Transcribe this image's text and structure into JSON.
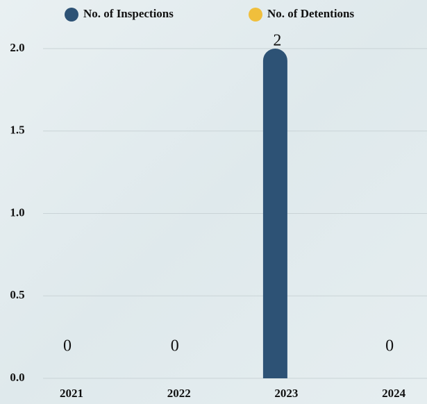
{
  "chart_data": {
    "type": "bar",
    "categories": [
      "2021",
      "2022",
      "2023",
      "2024"
    ],
    "series": [
      {
        "name": "No. of Inspections",
        "color": "#2d5275",
        "values": [
          0,
          0,
          2,
          0
        ]
      },
      {
        "name": "No. of Detentions",
        "color": "#f0bf3c",
        "values": [
          0,
          0,
          0,
          0
        ]
      }
    ],
    "ylim": [
      0,
      2
    ],
    "yticks": [
      {
        "value": 0,
        "label": "0.0"
      },
      0.5,
      {
        "value": 1,
        "label": "1.0"
      },
      {
        "value": 1.5,
        "label": "1.5"
      },
      {
        "value": 2,
        "label": "2.0"
      }
    ],
    "grid": true
  }
}
